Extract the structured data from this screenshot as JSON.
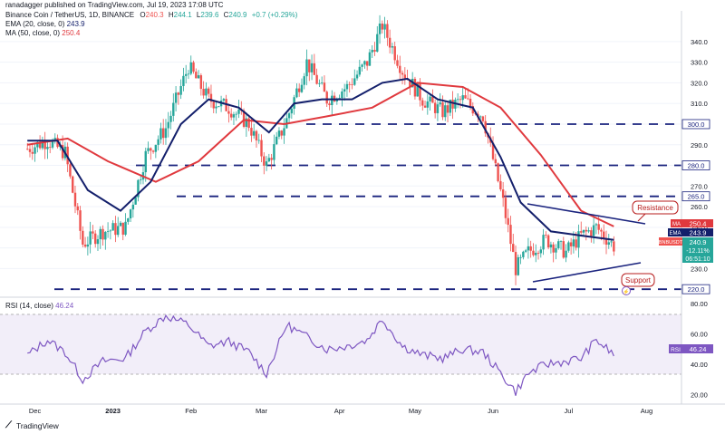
{
  "header": {
    "publisher": "ranadagger published on TradingView.com, Jul 19, 2023 17:08 UTC"
  },
  "legend": {
    "symbol_line": "Binance Coin / TetherUS, 1D, BINANCE",
    "ohlc": {
      "o_label": "O",
      "o": "240.3",
      "h_label": "H",
      "h": "244.1",
      "l_label": "L",
      "l": "239.6",
      "c_label": "C",
      "c": "240.9",
      "chg": "+0.7 (+0.29%)"
    },
    "ema_label": "EMA (20, close, 0)",
    "ema_value": "243.9",
    "ma_label": "MA (50, close, 0)",
    "ma_value": "250.4",
    "rsi_label": "RSI (14, close)",
    "rsi_value": "46.24"
  },
  "colors": {
    "up": "#26a69a",
    "down": "#ef5350",
    "ema": "#131f6b",
    "ma": "#e0393e",
    "level": "#1a237e",
    "rsi": "#7e57c2",
    "annotation": "#b71c1c"
  },
  "badges": {
    "ma": {
      "label": "MA",
      "value": "250.4"
    },
    "ema": {
      "label": "EMA",
      "value": "243.9"
    },
    "price": {
      "symbol": "BNBUSDT",
      "value": "240.9",
      "change": "-12.11%",
      "timer": "06:51:10"
    },
    "rsi": {
      "label": "RSI",
      "value": "46.24"
    }
  },
  "annotations": {
    "resistance": "Resistance",
    "support": "Support"
  },
  "footer": {
    "brand": "TradingView"
  },
  "chart_data": [
    {
      "type": "candlestick",
      "title": "Binance Coin / TetherUS, 1D, BINANCE",
      "y_axis": {
        "ticks": [
          230.0,
          240.0,
          250.0,
          260.0,
          270.0,
          280.0,
          290.0,
          300.0,
          310.0,
          320.0,
          330.0,
          340.0
        ],
        "tick_labels": [
          "230.0",
          "240.0",
          "250.0",
          "260.0",
          "270.0",
          "280.0",
          "290.0",
          "300.0",
          "310.0",
          "320.0",
          "330.0",
          "340.0"
        ],
        "range": [
          217,
          354
        ]
      },
      "x_axis": {
        "labels": [
          "Dec",
          "2023",
          "Feb",
          "Mar",
          "Apr",
          "May",
          "Jun",
          "Jul",
          "Aug"
        ]
      },
      "horizontal_levels": [
        {
          "value": 300.0,
          "label": "300.0"
        },
        {
          "value": 280.0,
          "label": "280.0"
        },
        {
          "value": 265.0,
          "label": "265.0"
        },
        {
          "value": 220.0,
          "label": "220.0"
        }
      ],
      "series": [
        {
          "name": "Price",
          "x": [
            "Nov 28",
            "Dec 6",
            "Dec 13",
            "Dec 20",
            "Dec 28",
            "Jan 6",
            "Jan 14",
            "Jan 22",
            "Jan 31",
            "Feb 8",
            "Feb 16",
            "Feb 24",
            "Mar 3",
            "Mar 11",
            "Mar 19",
            "Mar 27",
            "Apr 4",
            "Apr 12",
            "Apr 18",
            "Apr 26",
            "May 4",
            "May 12",
            "May 20",
            "May 28",
            "Jun 5",
            "Jun 10",
            "Jun 15",
            "Jun 22",
            "Jun 30",
            "Jul 6",
            "Jul 12",
            "Jul 19"
          ],
          "values": [
            288,
            292,
            286,
            242,
            248,
            250,
            285,
            298,
            328,
            312,
            308,
            300,
            280,
            302,
            330,
            312,
            318,
            330,
            348,
            326,
            312,
            306,
            312,
            304,
            262,
            230,
            238,
            244,
            238,
            246,
            250,
            240.9
          ]
        },
        {
          "name": "EMA (20, close, 0)",
          "x": [
            "Nov 28",
            "Dec 10",
            "Dec 22",
            "Jan 4",
            "Jan 16",
            "Jan 28",
            "Feb 8",
            "Feb 20",
            "Mar 4",
            "Mar 14",
            "Mar 25",
            "Apr 6",
            "Apr 18",
            "Apr 28",
            "May 10",
            "May 24",
            "Jun 4",
            "Jun 12",
            "Jun 24",
            "Jul 6",
            "Jul 19"
          ],
          "values": [
            292,
            292,
            268,
            258,
            272,
            300,
            312,
            308,
            296,
            310,
            312,
            312,
            320,
            322,
            312,
            308,
            284,
            262,
            248,
            246,
            243.9
          ]
        },
        {
          "name": "MA (50, close, 0)",
          "x": [
            "Nov 28",
            "Dec 14",
            "Dec 30",
            "Jan 18",
            "Feb 4",
            "Feb 22",
            "Mar 10",
            "Mar 28",
            "Apr 14",
            "May 2",
            "May 20",
            "Jun 4",
            "Jun 20",
            "Jul 6",
            "Jul 19"
          ],
          "values": [
            290,
            293,
            282,
            272,
            282,
            302,
            300,
            304,
            308,
            320,
            318,
            308,
            285,
            258,
            250.4
          ]
        }
      ]
    },
    {
      "type": "line",
      "title": "RSI (14, close)",
      "y_axis": {
        "ticks": [
          20.0,
          40.0,
          60.0,
          80.0
        ],
        "tick_labels": [
          "20.00",
          "40.00",
          "60.00",
          "80.00"
        ],
        "range": [
          15,
          83
        ]
      },
      "bands": {
        "upper": 70,
        "lower": 30
      },
      "series": [
        {
          "name": "RSI (14, close)",
          "x": [
            "Nov 28",
            "Dec 6",
            "Dec 13",
            "Dec 20",
            "Dec 28",
            "Jan 6",
            "Jan 14",
            "Jan 22",
            "Jan 31",
            "Feb 8",
            "Feb 16",
            "Feb 24",
            "Mar 3",
            "Mar 11",
            "Mar 19",
            "Mar 27",
            "Apr 4",
            "Apr 12",
            "Apr 18",
            "Apr 26",
            "May 4",
            "May 12",
            "May 20",
            "May 28",
            "Jun 5",
            "Jun 10",
            "Jun 15",
            "Jun 22",
            "Jun 30",
            "Jul 6",
            "Jul 12",
            "Jul 19"
          ],
          "values": [
            46,
            56,
            48,
            30,
            42,
            44,
            62,
            72,
            66,
            52,
            55,
            48,
            34,
            66,
            58,
            50,
            52,
            56,
            70,
            52,
            46,
            44,
            50,
            48,
            32,
            22,
            34,
            40,
            42,
            44,
            56,
            46.24
          ]
        }
      ]
    }
  ]
}
